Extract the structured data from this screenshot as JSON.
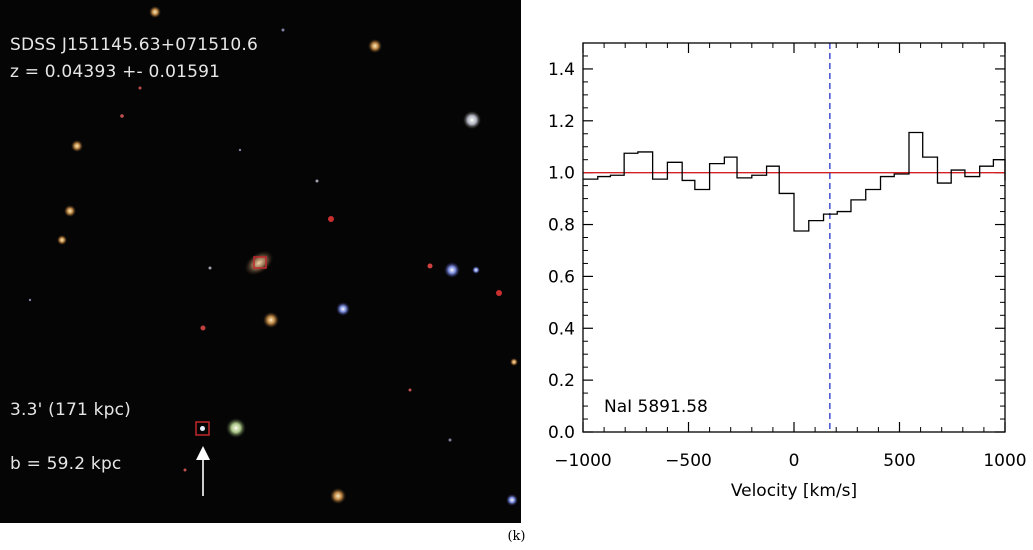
{
  "figure_label": "(k)",
  "image_panel": {
    "object_name": "SDSS J151145.63+071510.6",
    "redshift": "z = 0.04393 +- 0.01591",
    "angular_separation": "3.3' (171 kpc)",
    "impact_parameter": "b = 59.2 kpc",
    "background_color": "#050505",
    "text_color": "#e6e6e6",
    "marker_color": "#c0282d",
    "arrow_color": "#ffffff"
  },
  "chart_data": {
    "type": "line",
    "title": "",
    "xlabel": "Velocity [km/s]",
    "ylabel": "",
    "annotation": "NaI 5891.58",
    "xlim": [
      -1000,
      1000
    ],
    "ylim": [
      0,
      1.5
    ],
    "xticks": [
      -1000,
      -500,
      0,
      500,
      1000
    ],
    "xtick_labels": [
      "−1000",
      "−500",
      "0",
      "500",
      "1000"
    ],
    "yticks": [
      0,
      0.2,
      0.4,
      0.6,
      0.8,
      1.0,
      1.2,
      1.4
    ],
    "ytick_labels": [
      "0.0",
      "0.2",
      "0.4",
      "0.6",
      "0.8",
      "1.0",
      "1.2",
      "1.4"
    ],
    "grid": false,
    "continuum": {
      "y": 1.0,
      "color": "#d42020"
    },
    "marker_line": {
      "x": 170,
      "color": "#2233cc",
      "style": "dashed"
    },
    "series": [
      {
        "style": "histogram",
        "color": "#000000",
        "bin_edges": [
          -1000,
          -930,
          -870,
          -805,
          -740,
          -670,
          -600,
          -530,
          -470,
          -400,
          -330,
          -270,
          -200,
          -130,
          -70,
          0,
          70,
          140,
          205,
          270,
          340,
          410,
          475,
          545,
          610,
          680,
          745,
          810,
          880,
          945,
          1000
        ],
        "values": [
          0.975,
          0.985,
          0.99,
          1.075,
          1.08,
          0.975,
          1.04,
          0.97,
          0.935,
          1.035,
          1.06,
          0.98,
          0.99,
          1.025,
          0.92,
          0.775,
          0.815,
          0.84,
          0.85,
          0.895,
          0.935,
          0.985,
          0.995,
          1.155,
          1.06,
          0.96,
          1.01,
          0.985,
          1.025,
          1.05
        ]
      }
    ]
  }
}
